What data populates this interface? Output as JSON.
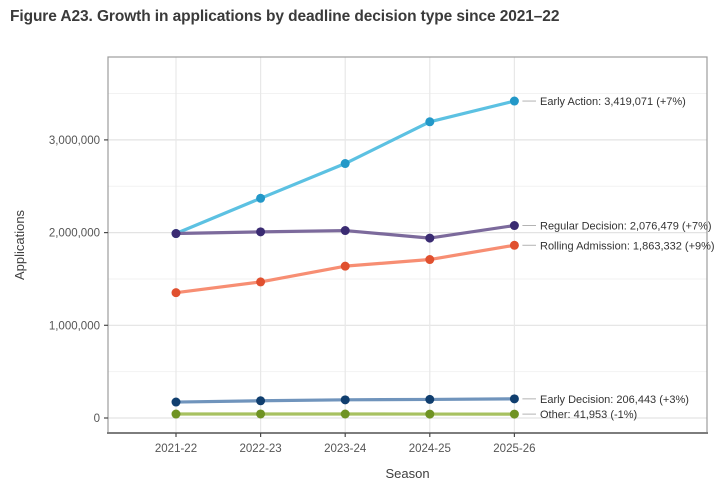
{
  "title": "Figure A23. Growth in applications by deadline decision type since 2021–22",
  "chart_data": {
    "type": "line",
    "title": "Figure A23. Growth in applications by deadline decision type since 2021–22",
    "xlabel": "Season",
    "ylabel": "Applications",
    "x": [
      "2021-22",
      "2022-23",
      "2023-24",
      "2024-25",
      "2025-26"
    ],
    "ylim": [
      0,
      3600000
    ],
    "yticks": [
      0,
      1000000,
      2000000,
      3000000
    ],
    "ytick_labels": [
      "0",
      "1,000,000",
      "2,000,000",
      "3,000,000"
    ],
    "minor_yticks": [
      500000,
      1500000,
      2500000,
      3500000
    ],
    "grid": true,
    "legend_position": "right-inline-labels",
    "grid_colors": {
      "minor": "#f2f2f2",
      "major": "#e3e3e3",
      "vertical": "#e8e8e8"
    },
    "panel_border_color": "#9c9c9c",
    "axis_line_color": "#7d7d7d",
    "tick_color": "#4a4a4a",
    "tick_label_color": "#555555",
    "axis_title_color": "#3f3f3f",
    "annotation_color": "#333333",
    "series": [
      {
        "name": "Early Action",
        "line_color": "#5cc1e2",
        "marker_color": "#2398c8",
        "values": [
          1990000,
          2370000,
          2745000,
          3195394,
          3419071
        ],
        "label": "Early Action: 3,419,071 (+7%)"
      },
      {
        "name": "Regular Decision",
        "line_color": "#7c6a9c",
        "marker_color": "#3a2b72",
        "values": [
          1990000,
          2008000,
          2022000,
          1940635,
          2076479
        ],
        "label": "Regular Decision: 2,076,479 (+7%)"
      },
      {
        "name": "Rolling Admission",
        "line_color": "#f78e73",
        "marker_color": "#e0502f",
        "values": [
          1352000,
          1468000,
          1638000,
          1709479,
          1863332
        ],
        "label": "Rolling Admission: 1,863,332 (+9%)"
      },
      {
        "name": "Early Decision",
        "line_color": "#7094bc",
        "marker_color": "#103e6e",
        "values": [
          172000,
          186000,
          196000,
          200430,
          206443
        ],
        "label": "Early Decision: 206,443 (+3%)"
      },
      {
        "name": "Other",
        "line_color": "#a7c160",
        "marker_color": "#6f9323",
        "values": [
          42800,
          43500,
          43200,
          42377,
          41953
        ],
        "label": "Other: 41,953 (-1%)"
      }
    ]
  }
}
